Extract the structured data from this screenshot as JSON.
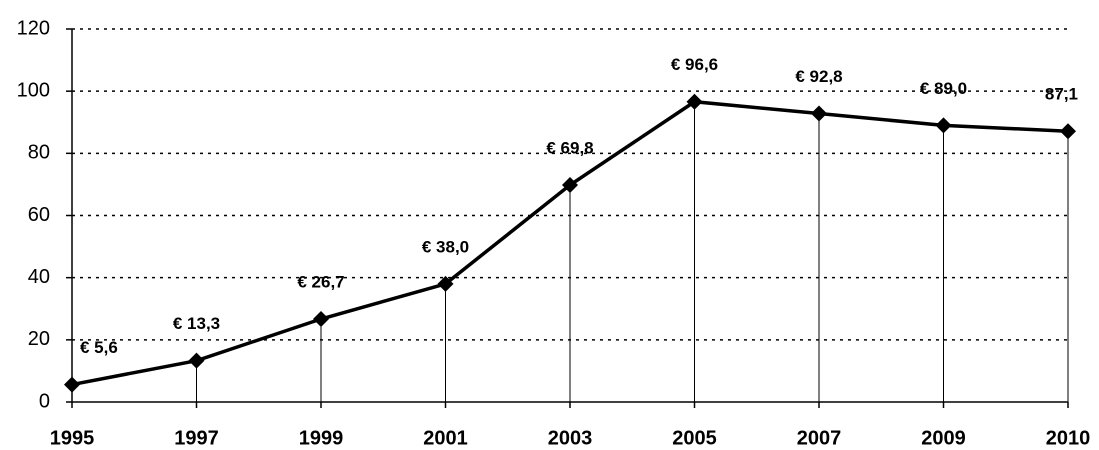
{
  "chart_data": {
    "type": "line",
    "categories": [
      "1995",
      "1997",
      "1999",
      "2001",
      "2003",
      "2005",
      "2007",
      "2009",
      "2010"
    ],
    "values": [
      5.6,
      13.3,
      26.7,
      38.0,
      69.8,
      96.6,
      92.8,
      89.0,
      87.1
    ],
    "value_labels": [
      "€ 5,6",
      "€ 13,3",
      "€ 26,7",
      "€ 38,0",
      "€ 69,8",
      "€ 96,6",
      "€ 92,8",
      "€ 89,0",
      "87,1"
    ],
    "color": "#000000",
    "ylim": [
      0,
      120
    ],
    "yticks": [
      0,
      20,
      40,
      60,
      80,
      100,
      120
    ],
    "grid": true
  }
}
